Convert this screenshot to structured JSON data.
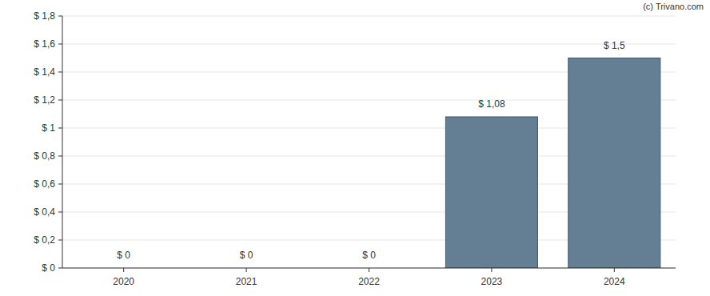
{
  "chart_data": {
    "type": "bar",
    "categories": [
      "2020",
      "2021",
      "2022",
      "2023",
      "2024"
    ],
    "values": [
      0,
      0,
      0,
      1.08,
      1.5
    ],
    "value_labels": [
      "$ 0",
      "$ 0",
      "$ 0",
      "$ 1,08",
      "$ 1,5"
    ],
    "data_labels": true,
    "color": "#647f93",
    "ylim": [
      0,
      1.8
    ],
    "yticks": [
      {
        "value": 0,
        "label": "$ 0"
      },
      {
        "value": 0.2,
        "label": "$ 0,2"
      },
      {
        "value": 0.4,
        "label": "$ 0,4"
      },
      {
        "value": 0.6,
        "label": "$ 0,6"
      },
      {
        "value": 0.8,
        "label": "$ 0,8"
      },
      {
        "value": 1,
        "label": "$ 1"
      },
      {
        "value": 1.2,
        "label": "$ 1,2"
      },
      {
        "value": 1.4,
        "label": "$ 1,4"
      },
      {
        "value": 1.6,
        "label": "$ 1,6"
      },
      {
        "value": 1.8,
        "label": "$ 1,8"
      }
    ],
    "grid": true,
    "annotations": [
      "(c) Trivano.com"
    ]
  }
}
